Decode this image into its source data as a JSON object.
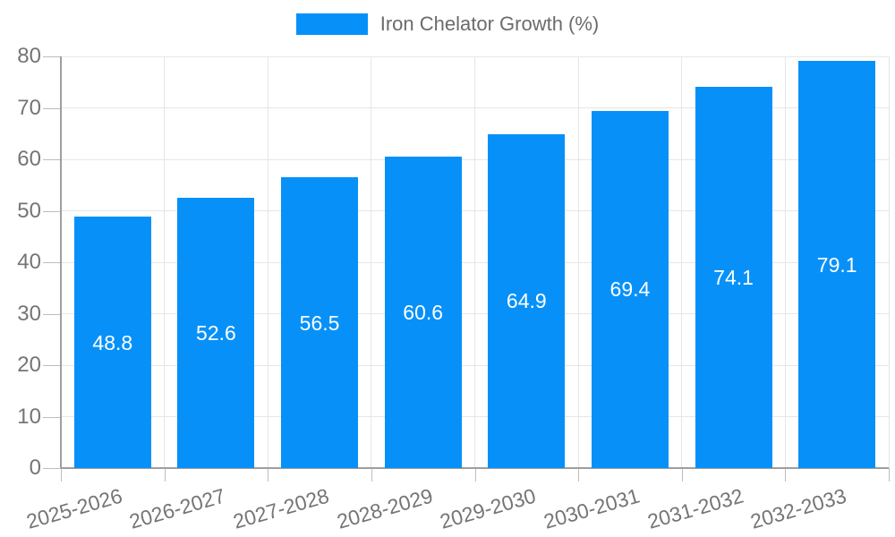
{
  "chart_data": {
    "type": "bar",
    "title": "Iron Chelator Growth (%)",
    "categories": [
      "2025-2026",
      "2026-2027",
      "2027-2028",
      "2028-2029",
      "2029-2030",
      "2030-2031",
      "2031-2032",
      "2032-2033"
    ],
    "values": [
      48.8,
      52.6,
      56.5,
      60.6,
      64.9,
      69.4,
      74.1,
      79.1
    ],
    "value_labels": [
      "48.8",
      "52.6",
      "56.5",
      "60.6",
      "64.9",
      "69.4",
      "74.1",
      "79.1"
    ],
    "y_tick_labels": [
      "0",
      "10",
      "20",
      "30",
      "40",
      "50",
      "60",
      "70",
      "80"
    ],
    "ylim": [
      0,
      80
    ],
    "xlabel": "",
    "ylabel": "",
    "grid": true,
    "legend_position": "top-center",
    "bar_color": "#0791f8",
    "value_label_color": "#ffffff",
    "axis_label_color": "#757575"
  }
}
